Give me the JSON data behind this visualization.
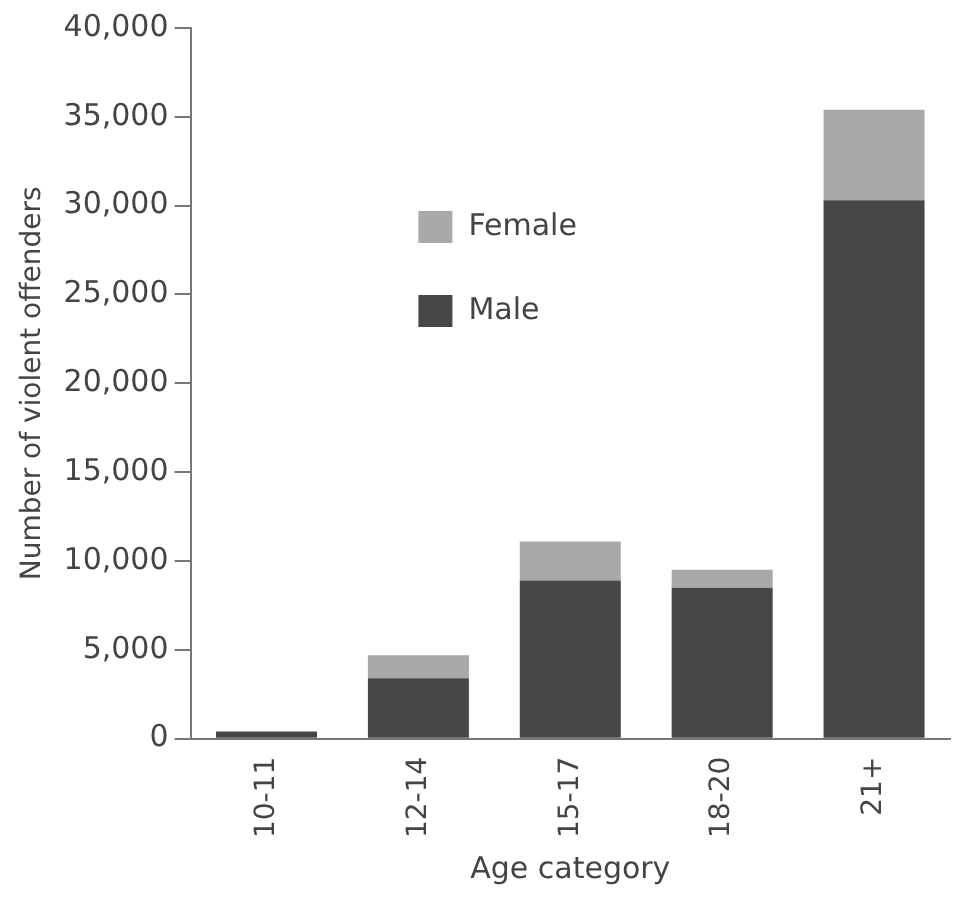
{
  "chart_data": {
    "type": "bar",
    "stacked": true,
    "xlabel": "Age category",
    "ylabel": "Number of violent offenders",
    "categories": [
      "10-11",
      "12-14",
      "15-17",
      "18-20",
      "21+"
    ],
    "series": [
      {
        "name": "Male",
        "color": "#474747",
        "values": [
          400,
          3400,
          8900,
          8500,
          30300
        ]
      },
      {
        "name": "Female",
        "color": "#a9a9a9",
        "values": [
          null,
          1300,
          2200,
          1000,
          5100
        ]
      }
    ],
    "ylim": [
      0,
      40000
    ],
    "yticks": [
      {
        "value": 0,
        "label": "0"
      },
      {
        "value": 5000,
        "label": "5,000"
      },
      {
        "value": 10000,
        "label": "10,000"
      },
      {
        "value": 15000,
        "label": "15,000"
      },
      {
        "value": 20000,
        "label": "20,000"
      },
      {
        "value": 25000,
        "label": "25,000"
      },
      {
        "value": 30000,
        "label": "30,000"
      },
      {
        "value": 35000,
        "label": "35,000"
      },
      {
        "value": 40000,
        "label": "40,000"
      }
    ],
    "grid": false,
    "legend": "top left"
  }
}
